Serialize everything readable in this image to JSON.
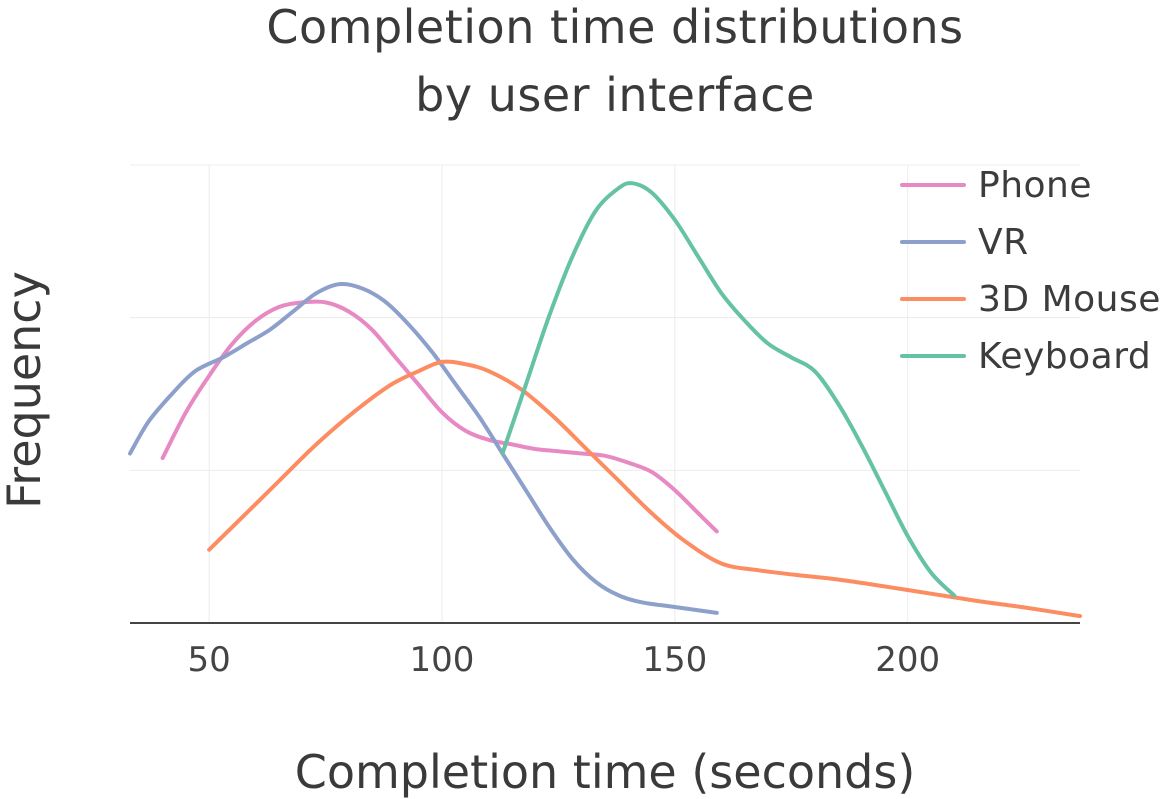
{
  "chart_data": {
    "type": "line",
    "title_lines": [
      "Completion time distributions",
      "by user interface"
    ],
    "xlabel": "Completion time (seconds)",
    "ylabel": "Frequency",
    "xlim": [
      33,
      237
    ],
    "ylim": [
      0,
      1.0
    ],
    "xticks": [
      50,
      100,
      150,
      200
    ],
    "grid": true,
    "legend_position": "top-right",
    "series": [
      {
        "name": "Phone",
        "color": "#e78ac3",
        "x": [
          40,
          45,
          50,
          55,
          60,
          65,
          70,
          75,
          80,
          85,
          90,
          95,
          100,
          105,
          110,
          115,
          120,
          125,
          130,
          135,
          140,
          145,
          150,
          155,
          159
        ],
        "y": [
          0.36,
          0.46,
          0.54,
          0.61,
          0.66,
          0.69,
          0.7,
          0.7,
          0.68,
          0.64,
          0.58,
          0.52,
          0.46,
          0.42,
          0.4,
          0.39,
          0.38,
          0.375,
          0.37,
          0.365,
          0.35,
          0.33,
          0.29,
          0.24,
          0.2
        ]
      },
      {
        "name": "VR",
        "color": "#8da0cb",
        "x": [
          33,
          37,
          42,
          47,
          53,
          58,
          63,
          68,
          73,
          78,
          83,
          88,
          93,
          98,
          103,
          108,
          113,
          118,
          123,
          128,
          133,
          138,
          143,
          150,
          159
        ],
        "y": [
          0.37,
          0.44,
          0.5,
          0.55,
          0.58,
          0.61,
          0.64,
          0.68,
          0.72,
          0.74,
          0.73,
          0.7,
          0.65,
          0.59,
          0.52,
          0.45,
          0.37,
          0.29,
          0.21,
          0.14,
          0.09,
          0.06,
          0.045,
          0.035,
          0.022
        ]
      },
      {
        "name": "3D Mouse",
        "color": "#fc8d62",
        "x": [
          50,
          57,
          65,
          73,
          81,
          89,
          95,
          100,
          105,
          110,
          117,
          124,
          131,
          138,
          145,
          152,
          160,
          168,
          176,
          185,
          195,
          205,
          215,
          225,
          237
        ],
        "y": [
          0.16,
          0.23,
          0.31,
          0.39,
          0.46,
          0.52,
          0.55,
          0.57,
          0.565,
          0.55,
          0.51,
          0.45,
          0.38,
          0.31,
          0.24,
          0.18,
          0.13,
          0.115,
          0.105,
          0.095,
          0.08,
          0.064,
          0.048,
          0.034,
          0.015
        ]
      },
      {
        "name": "Keyboard",
        "color": "#66c2a5",
        "x": [
          113,
          118,
          123,
          128,
          133,
          138,
          141,
          145,
          150,
          155,
          160,
          165,
          170,
          175,
          180,
          185,
          190,
          195,
          200,
          205,
          210
        ],
        "y": [
          0.37,
          0.52,
          0.67,
          0.8,
          0.9,
          0.95,
          0.96,
          0.94,
          0.88,
          0.8,
          0.72,
          0.66,
          0.61,
          0.58,
          0.55,
          0.48,
          0.39,
          0.29,
          0.19,
          0.11,
          0.06
        ]
      }
    ]
  }
}
